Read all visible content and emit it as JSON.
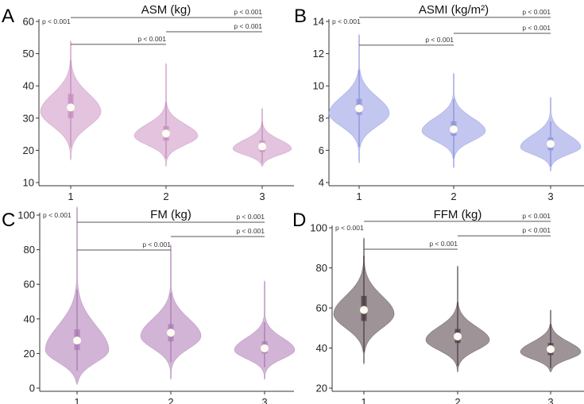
{
  "chart_data": [
    {
      "type": "violin",
      "panel": "A",
      "title": "ASM (kg)",
      "categories": [
        "1",
        "2",
        "3"
      ],
      "ylim": [
        10,
        60
      ],
      "yticks": [
        10,
        20,
        30,
        40,
        50,
        60
      ],
      "colors": {
        "fill": "#e3c3de",
        "line": "#c48bbb"
      },
      "groups": [
        {
          "median": 33.3,
          "q1": 30,
          "q3": 37.5,
          "whisker": [
            21,
            48
          ],
          "range": [
            17,
            54
          ],
          "mode": 32,
          "sd_low": 4.5,
          "sd_high": 5.5,
          "peak_density": 0.95
        },
        {
          "median": 25.2,
          "q1": 23,
          "q3": 27.5,
          "whisker": [
            17.5,
            35
          ],
          "range": [
            15,
            47
          ],
          "mode": 24.5,
          "sd_low": 2.8,
          "sd_high": 3.6,
          "peak_density": 1.0
        },
        {
          "median": 21.2,
          "q1": 19.5,
          "q3": 23,
          "whisker": [
            16,
            29
          ],
          "range": [
            15,
            33
          ],
          "mode": 20.5,
          "sd_low": 1.9,
          "sd_high": 2.8,
          "peak_density": 0.92
        }
      ],
      "comparisons": [
        {
          "pair": [
            1,
            3
          ],
          "y": 61.2,
          "label": "p < 0.001"
        },
        {
          "pair": [
            2,
            3
          ],
          "y": 56.8,
          "label": "p < 0.001"
        },
        {
          "pair": [
            1,
            2
          ],
          "y": 52.9,
          "label": "p < 0.001"
        }
      ],
      "corner_label": "p < 0.001"
    },
    {
      "type": "violin",
      "panel": "B",
      "title": "ASMI (kg/m²)",
      "categories": [
        "1",
        "2",
        "3"
      ],
      "ylim": [
        4,
        14
      ],
      "yticks": [
        4,
        6,
        8,
        10,
        12,
        14
      ],
      "colors": {
        "fill": "#c3c6ee",
        "line": "#8a90da"
      },
      "groups": [
        {
          "median": 8.6,
          "q1": 8.2,
          "q3": 9.2,
          "whisker": [
            6.2,
            11
          ],
          "range": [
            5.2,
            13.2
          ],
          "mode": 8.3,
          "sd_low": 0.8,
          "sd_high": 1.0,
          "peak_density": 0.95
        },
        {
          "median": 7.3,
          "q1": 6.9,
          "q3": 7.8,
          "whisker": [
            5.5,
            9.2
          ],
          "range": [
            4.9,
            10.8
          ],
          "mode": 7.2,
          "sd_low": 0.6,
          "sd_high": 0.8,
          "peak_density": 1.0
        },
        {
          "median": 6.4,
          "q1": 6.0,
          "q3": 6.8,
          "whisker": [
            5.0,
            7.8
          ],
          "range": [
            4.7,
            9.3
          ],
          "mode": 6.2,
          "sd_low": 0.45,
          "sd_high": 0.75,
          "peak_density": 0.95
        }
      ],
      "comparisons": [
        {
          "pair": [
            1,
            3
          ],
          "y": 14.25,
          "label": "p < 0.001"
        },
        {
          "pair": [
            2,
            3
          ],
          "y": 13.26,
          "label": "p < 0.001"
        },
        {
          "pair": [
            1,
            2
          ],
          "y": 12.53,
          "label": "p < 0.001"
        }
      ],
      "corner_label": "p < 0.001"
    },
    {
      "type": "violin",
      "panel": "C",
      "title": "FM (kg)",
      "categories": [
        "1",
        "2",
        "3"
      ],
      "ylim": [
        0,
        100
      ],
      "yticks": [
        0,
        20,
        40,
        60,
        80,
        100
      ],
      "colors": {
        "fill": "#d2b4d6",
        "line": "#a97bb1"
      },
      "groups": [
        {
          "median": 27.5,
          "q1": 22,
          "q3": 34,
          "whisker": [
            10,
            57
          ],
          "range": [
            2,
            105
          ],
          "mode": 22,
          "sd_low": 7,
          "sd_high": 14,
          "peak_density": 1.0
        },
        {
          "median": 32,
          "q1": 27,
          "q3": 37,
          "whisker": [
            15,
            55
          ],
          "range": [
            5,
            83
          ],
          "mode": 30,
          "sd_low": 7,
          "sd_high": 10,
          "peak_density": 0.95
        },
        {
          "median": 23,
          "q1": 20,
          "q3": 27,
          "whisker": [
            12,
            38
          ],
          "range": [
            5,
            62
          ],
          "mode": 22,
          "sd_low": 5,
          "sd_high": 7,
          "peak_density": 0.95
        }
      ],
      "comparisons": [
        {
          "pair": [
            1,
            3
          ],
          "y": 95.9,
          "label": "p < 0.001"
        },
        {
          "pair": [
            2,
            3
          ],
          "y": 87.6,
          "label": "p < 0.001"
        },
        {
          "pair": [
            1,
            2
          ],
          "y": 79.8,
          "label": "p < 0.001"
        }
      ],
      "corner_label": "p < 0.001"
    },
    {
      "type": "violin",
      "panel": "D",
      "title": "FFM (kg)",
      "categories": [
        "1",
        "2",
        "3"
      ],
      "ylim": [
        20,
        100
      ],
      "yticks": [
        20,
        40,
        60,
        80,
        100
      ],
      "colors": {
        "fill": "#9e9497",
        "line": "#4a3a42"
      },
      "groups": [
        {
          "median": 59,
          "q1": 53.5,
          "q3": 66,
          "whisker": [
            38,
            86
          ],
          "range": [
            32,
            95
          ],
          "mode": 57,
          "sd_low": 7,
          "sd_high": 9,
          "peak_density": 0.95
        },
        {
          "median": 45.8,
          "q1": 42.5,
          "q3": 49.5,
          "whisker": [
            31,
            63
          ],
          "range": [
            28,
            81
          ],
          "mode": 44,
          "sd_low": 5,
          "sd_high": 6.5,
          "peak_density": 1.0
        },
        {
          "median": 39.4,
          "q1": 36.5,
          "q3": 42.5,
          "whisker": [
            30,
            52
          ],
          "range": [
            28,
            59
          ],
          "mode": 38,
          "sd_low": 3.5,
          "sd_high": 5,
          "peak_density": 0.95
        }
      ],
      "comparisons": [
        {
          "pair": [
            1,
            3
          ],
          "y": 103.2,
          "label": "p < 0.001"
        },
        {
          "pair": [
            2,
            3
          ],
          "y": 96.0,
          "label": "p < 0.001"
        },
        {
          "pair": [
            1,
            2
          ],
          "y": 89.3,
          "label": "p < 0.001"
        }
      ],
      "corner_label": "p < 0.001"
    }
  ]
}
